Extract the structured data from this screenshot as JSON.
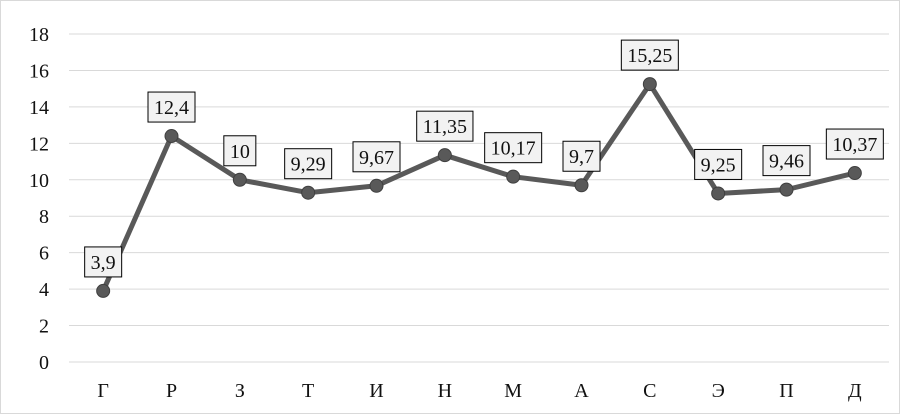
{
  "chart_data": {
    "type": "line",
    "title": "",
    "xlabel": "",
    "ylabel": "",
    "categories": [
      "Г",
      "Р",
      "З",
      "Т",
      "И",
      "Н",
      "М",
      "А",
      "С",
      "Э",
      "П",
      "Д"
    ],
    "series": [
      {
        "values": [
          3.9,
          12.4,
          10,
          9.29,
          9.67,
          11.35,
          10.17,
          9.7,
          15.25,
          9.25,
          9.46,
          10.37
        ],
        "labels": [
          "3,9",
          "12,4",
          "10",
          "9,29",
          "9,67",
          "11,35",
          "10,17",
          "9,7",
          "15,25",
          "9,25",
          "9,46",
          "10,37"
        ]
      }
    ],
    "ylim": [
      0,
      18
    ],
    "yticks": [
      "0",
      "2",
      "4",
      "6",
      "8",
      "10",
      "12",
      "14",
      "16",
      "18"
    ],
    "grid": true,
    "legend": "none",
    "colors": {
      "line": "#595959",
      "marker": "#595959",
      "grid": "#d9d9d9",
      "label_box": "#f2f2f2",
      "label_border": "#000000"
    }
  }
}
